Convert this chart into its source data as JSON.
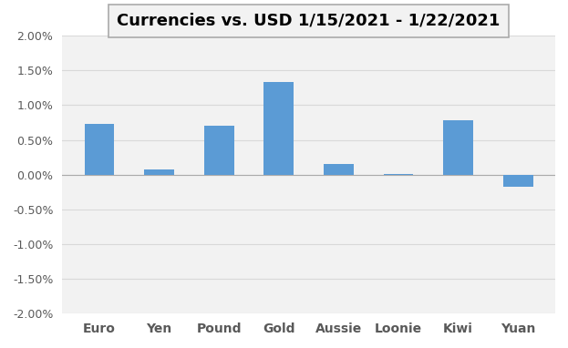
{
  "title": "Currencies vs. USD 1/15/2021 - 1/22/2021",
  "categories": [
    "Euro",
    "Yen",
    "Pound",
    "Gold",
    "Aussie",
    "Loonie",
    "Kiwi",
    "Yuan"
  ],
  "values": [
    0.0073,
    0.0007,
    0.007,
    0.0133,
    0.0015,
    0.0001,
    0.0078,
    -0.0018
  ],
  "bar_color": "#5B9BD5",
  "background_color": "#FFFFFF",
  "plot_bg_color": "#F2F2F2",
  "ylim": [
    -0.02,
    0.02
  ],
  "yticks": [
    -0.02,
    -0.015,
    -0.01,
    -0.005,
    0.0,
    0.005,
    0.01,
    0.015,
    0.02
  ],
  "ytick_labels": [
    "-2.00%",
    "-1.50%",
    "-1.00%",
    "-0.50%",
    "0.00%",
    "0.50%",
    "1.00%",
    "1.50%",
    "2.00%"
  ],
  "title_fontsize": 13,
  "tick_fontsize": 9,
  "grid_color": "#D9D9D9",
  "title_box_color": "#F2F2F2",
  "title_box_edge": "#AAAAAA"
}
